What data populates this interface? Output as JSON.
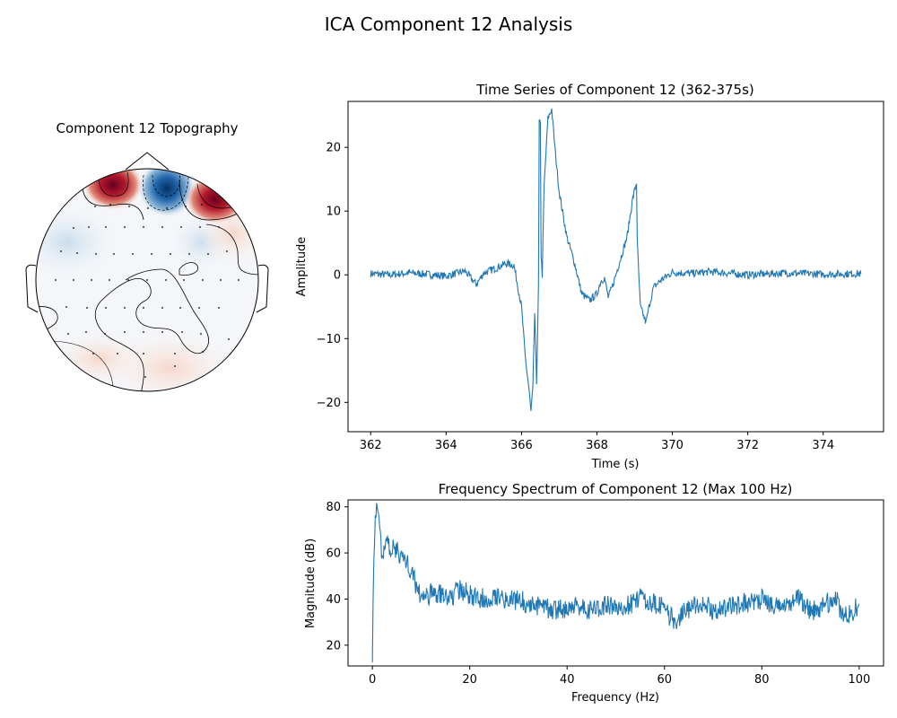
{
  "figure": {
    "title": "ICA Component 12 Analysis"
  },
  "topomap": {
    "title": "Component 12 Topography",
    "colors": {
      "positive": "#b2182b",
      "negative": "#2166ac",
      "neutral": "#f7f7f7"
    }
  },
  "chart_data": [
    {
      "type": "line",
      "title": "Time Series of Component 12 (362-375s)",
      "xlabel": "Time (s)",
      "ylabel": "Amplitude",
      "xlim": [
        361.4,
        375.6
      ],
      "ylim": [
        -24.6,
        27.2
      ],
      "xticks": [
        362,
        364,
        366,
        368,
        370,
        372,
        374
      ],
      "yticks": [
        -20,
        -10,
        0,
        10,
        20
      ],
      "grid": false,
      "color": "#1f77b4",
      "series": [
        {
          "x": [
            362.0,
            362.5,
            363.0,
            363.5,
            364.0,
            364.5,
            364.8,
            365.0,
            365.3,
            365.6,
            365.8,
            366.0,
            366.1,
            366.2,
            366.25,
            366.3,
            366.35,
            366.4,
            366.45,
            366.47,
            366.5,
            366.52,
            366.55,
            366.6,
            366.7,
            366.8,
            366.9,
            367.0,
            367.2,
            367.4,
            367.6,
            367.8,
            368.0,
            368.1,
            368.2,
            368.3,
            368.4,
            368.6,
            368.8,
            368.95,
            369.05,
            369.07,
            369.15,
            369.3,
            369.4,
            369.5,
            369.7,
            370.0,
            370.5,
            371.0,
            372.0,
            373.0,
            374.0,
            375.0
          ],
          "y": [
            0.2,
            0.0,
            0.3,
            0.1,
            -0.2,
            0.6,
            -1.5,
            0.3,
            1.0,
            1.8,
            1.5,
            -5.0,
            -13.0,
            -18.0,
            -21.5,
            -18.0,
            -6.0,
            -17.0,
            -2.0,
            24.0,
            23.5,
            3.0,
            0.0,
            14.0,
            24.5,
            26.0,
            19.0,
            13.0,
            6.0,
            2.0,
            -3.0,
            -4.0,
            -3.0,
            -1.0,
            -0.5,
            -3.5,
            -2.0,
            2.0,
            6.0,
            12.0,
            14.5,
            5.0,
            -5.0,
            -7.5,
            -4.5,
            -2.0,
            -0.8,
            0.4,
            0.2,
            0.5,
            0.0,
            0.3,
            0.1,
            0.2
          ]
        }
      ]
    },
    {
      "type": "line",
      "title": "Frequency Spectrum of Component 12 (Max 100 Hz)",
      "xlabel": "Frequency (Hz)",
      "ylabel": "Magnitude (dB)",
      "xlim": [
        -5,
        105
      ],
      "ylim": [
        11,
        83
      ],
      "xticks": [
        0,
        20,
        40,
        60,
        80,
        100
      ],
      "yticks": [
        20,
        40,
        60,
        80
      ],
      "grid": false,
      "color": "#1f77b4",
      "series": [
        {
          "x": [
            0,
            0.3,
            0.6,
            1.0,
            1.5,
            2.0,
            2.5,
            3,
            4,
            5,
            6,
            7,
            8,
            9,
            10,
            11,
            12,
            14,
            16,
            18,
            20,
            22,
            24,
            26,
            28,
            30,
            32,
            34,
            36,
            38,
            40,
            42,
            44,
            46,
            48,
            50,
            52,
            54,
            55,
            56,
            58,
            60,
            62,
            64,
            66,
            68,
            70,
            72,
            74,
            76,
            78,
            80,
            82,
            84,
            86,
            88,
            90,
            92,
            94,
            95,
            96,
            98,
            100
          ],
          "y": [
            17,
            60,
            75,
            79,
            72,
            58,
            63,
            64,
            62,
            61,
            59,
            56,
            52,
            46,
            42,
            40,
            43,
            42,
            41,
            44,
            42,
            40,
            41,
            42,
            39,
            40,
            38,
            37,
            36,
            35,
            36,
            37,
            36,
            35,
            38,
            36,
            37,
            39,
            42,
            40,
            38,
            36,
            30,
            34,
            37,
            38,
            35,
            36,
            37,
            38,
            39,
            40,
            37,
            36,
            39,
            40,
            35,
            36,
            39,
            42,
            35,
            33,
            38
          ]
        }
      ]
    }
  ]
}
